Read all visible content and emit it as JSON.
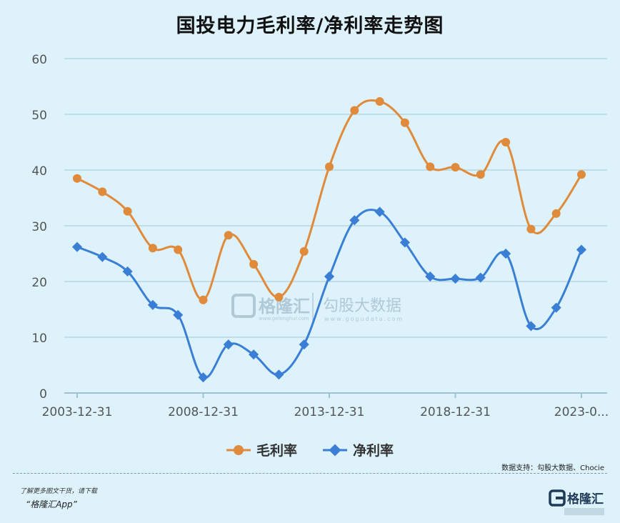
{
  "title": "国投电力毛利率/净利率走势图",
  "source_note": "数据支持：勾股大数据、Chocie",
  "promo_line1": "了解更多图文干货，请下载",
  "promo_line2": "“格隆汇App”",
  "watermark": {
    "brand_cn": "格隆汇",
    "brand_url": "www.gelonghui.com",
    "data_brand": "勾股大数据",
    "data_url": "www.gogudata.com"
  },
  "logo_text": "格隆汇",
  "colors": {
    "gross": "#e08a3c",
    "net": "#3a7fd5",
    "grid": "#b7d7e4",
    "axis_text": "#555555",
    "background": "#ddf2fb"
  },
  "chart_data": {
    "type": "line",
    "title": "国投电力毛利率/净利率走势图",
    "x_tick_labels": [
      "2003-12-31",
      "2008-12-31",
      "2013-12-31",
      "2018-12-31",
      "2023-0..."
    ],
    "x_tick_positions": [
      0,
      5,
      10,
      15,
      20
    ],
    "y_ticks": [
      0,
      10,
      20,
      30,
      40,
      50,
      60
    ],
    "ylim": [
      0,
      60
    ],
    "grid": true,
    "legend_position": "bottom",
    "series": [
      {
        "name": "毛利率",
        "marker": "circle",
        "values": [
          38.5,
          36.1,
          32.6,
          26.0,
          25.7,
          16.7,
          28.3,
          23.1,
          17.2,
          25.4,
          40.6,
          50.7,
          52.3,
          48.5,
          40.6,
          40.5,
          39.2,
          45.0,
          29.4,
          32.2,
          39.2
        ]
      },
      {
        "name": "净利率",
        "marker": "diamond",
        "values": [
          26.2,
          24.4,
          21.8,
          15.8,
          14.0,
          2.8,
          8.7,
          6.9,
          3.3,
          8.7,
          20.9,
          31.0,
          32.5,
          27.0,
          20.9,
          20.5,
          20.7,
          25.0,
          12.0,
          15.3,
          25.7
        ]
      }
    ]
  }
}
